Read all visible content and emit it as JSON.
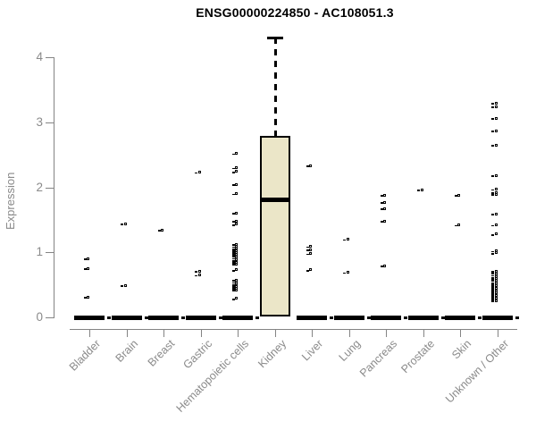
{
  "chart_data": {
    "type": "boxplot",
    "title": "ENSG00000224850 - AC108051.3",
    "ylabel": "Expression",
    "xlabel": "",
    "ylim": [
      0,
      4.4
    ],
    "yticks": [
      0,
      1,
      2,
      3,
      4
    ],
    "grid": false,
    "legend": "none",
    "categories": [
      "Bladder",
      "Brain",
      "Breast",
      "Gastric",
      "Hematopoietic cells",
      "Kidney",
      "Liver",
      "Lung",
      "Pancreas",
      "Prostate",
      "Skin",
      "Unknown / Other"
    ],
    "boxes": [
      {
        "category": "Bladder",
        "q1": 0,
        "median": 0,
        "q3": 0,
        "whisker_low": 0,
        "whisker_high": 0,
        "outliers": [
          0.88,
          0.73,
          0.29
        ]
      },
      {
        "category": "Brain",
        "q1": 0,
        "median": 0,
        "q3": 0,
        "whisker_low": 0,
        "whisker_high": 0,
        "outliers": [
          1.42,
          0.47
        ]
      },
      {
        "category": "Breast",
        "q1": 0,
        "median": 0,
        "q3": 0,
        "whisker_low": 0,
        "whisker_high": 0,
        "outliers": [
          1.32
        ]
      },
      {
        "category": "Gastric",
        "q1": 0,
        "median": 0,
        "q3": 0,
        "whisker_low": 0,
        "whisker_high": 0,
        "outliers": [
          2.21,
          0.69,
          0.63
        ]
      },
      {
        "category": "Hematopoietic cells",
        "q1": 0,
        "median": 0,
        "q3": 0,
        "whisker_low": 0,
        "whisker_high": 0,
        "outliers": [
          2.5,
          2.28,
          2.22,
          2.02,
          1.88,
          1.58,
          1.46,
          1.41,
          1.1,
          1.07,
          1.04,
          1.01,
          0.98,
          0.95,
          0.92,
          0.89,
          0.86,
          0.83,
          0.8,
          0.71,
          0.55,
          0.52,
          0.49,
          0.46,
          0.43,
          0.4,
          0.27
        ]
      },
      {
        "category": "Kidney",
        "q1": 0.02,
        "median": 1.81,
        "q3": 2.79,
        "whisker_low": 0,
        "whisker_high": 4.3,
        "outliers": []
      },
      {
        "category": "Liver",
        "q1": 0,
        "median": 0,
        "q3": 0,
        "whisker_low": 0,
        "whisker_high": 0,
        "outliers": [
          2.31,
          1.07,
          1.02,
          0.96,
          0.71
        ]
      },
      {
        "category": "Lung",
        "q1": 0,
        "median": 0,
        "q3": 0,
        "whisker_low": 0,
        "whisker_high": 0,
        "outliers": [
          1.18,
          0.67
        ]
      },
      {
        "category": "Pancreas",
        "q1": 0,
        "median": 0,
        "q3": 0,
        "whisker_low": 0,
        "whisker_high": 0,
        "outliers": [
          1.86,
          1.75,
          1.65,
          1.46,
          0.77
        ]
      },
      {
        "category": "Prostate",
        "q1": 0,
        "median": 0,
        "q3": 0,
        "whisker_low": 0,
        "whisker_high": 0,
        "outliers": [
          1.94
        ]
      },
      {
        "category": "Skin",
        "q1": 0,
        "median": 0,
        "q3": 0,
        "whisker_low": 0,
        "whisker_high": 0,
        "outliers": [
          1.86,
          1.4
        ]
      },
      {
        "category": "Unknown / Other",
        "q1": 0,
        "median": 0,
        "q3": 0,
        "whisker_low": 0,
        "whisker_high": 0,
        "outliers": [
          3.27,
          3.22,
          3.04,
          2.85,
          2.63,
          2.16,
          1.95,
          1.9,
          1.87,
          1.57,
          1.4,
          1.26,
          1.0,
          0.97,
          0.69,
          0.66,
          0.63,
          0.6,
          0.58,
          0.55,
          0.52,
          0.5,
          0.47,
          0.44,
          0.42,
          0.39,
          0.36,
          0.33,
          0.31,
          0.28,
          0.25,
          0.23
        ]
      }
    ],
    "colors": {
      "box_fill": "#ebe6c8",
      "box_border": "#000000",
      "median": "#000000",
      "axis": "#848484",
      "tick_label": "#8a8a8a",
      "title": "#000000",
      "background": "#ffffff"
    }
  }
}
